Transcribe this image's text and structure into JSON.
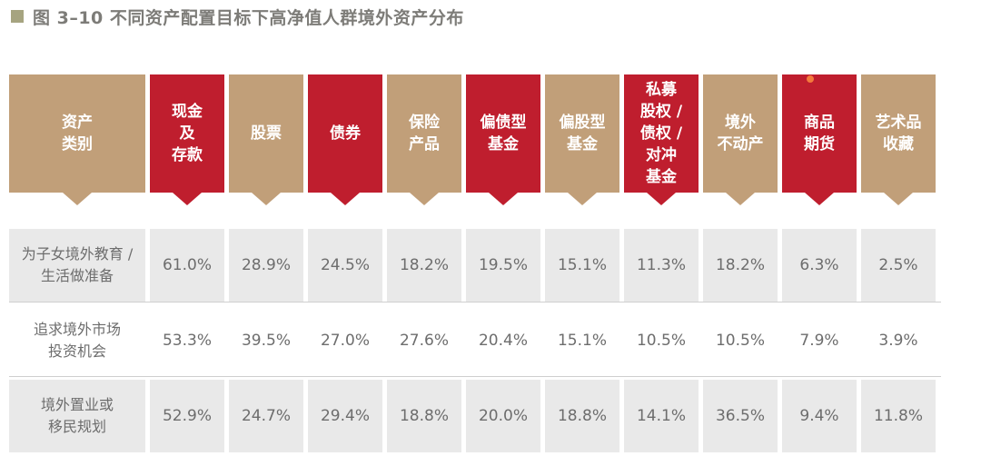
{
  "title": "图 3–10  不同资产配置目标下高净值人群境外资产分布",
  "colors": {
    "tan": "#c19f79",
    "red": "#bf1e2e",
    "row_shade": "#e9e9e9",
    "title_square": "#a6a480"
  },
  "chart_data": {
    "type": "table",
    "title": "图 3–10  不同资产配置目标下高净值人群境外资产分布",
    "corner_header": "资产\n类别",
    "columns": [
      {
        "label": "现金\n及\n存款",
        "color": "red"
      },
      {
        "label": "股票",
        "color": "tan"
      },
      {
        "label": "债券",
        "color": "red"
      },
      {
        "label": "保险\n产品",
        "color": "tan"
      },
      {
        "label": "偏债型\n基金",
        "color": "red"
      },
      {
        "label": "偏股型\n基金",
        "color": "tan"
      },
      {
        "label": "私募\n股权 /\n债权 /\n对冲\n基金",
        "color": "red"
      },
      {
        "label": "境外\n不动产",
        "color": "tan"
      },
      {
        "label": "商品\n期货",
        "color": "red"
      },
      {
        "label": "艺术品\n收藏",
        "color": "tan"
      }
    ],
    "rows": [
      {
        "label": "为子女境外教育 /\n生活做准备",
        "shaded": true,
        "values": [
          "61.0%",
          "28.9%",
          "24.5%",
          "18.2%",
          "19.5%",
          "15.1%",
          "11.3%",
          "18.2%",
          "6.3%",
          "2.5%"
        ]
      },
      {
        "label": "追求境外市场\n投资机会",
        "shaded": false,
        "values": [
          "53.3%",
          "39.5%",
          "27.0%",
          "27.6%",
          "20.4%",
          "15.1%",
          "10.5%",
          "10.5%",
          "7.9%",
          "3.9%"
        ]
      },
      {
        "label": "境外置业或\n移民规划",
        "shaded": true,
        "values": [
          "52.9%",
          "24.7%",
          "29.4%",
          "18.8%",
          "20.0%",
          "18.8%",
          "14.1%",
          "36.5%",
          "9.4%",
          "11.8%"
        ]
      }
    ]
  }
}
